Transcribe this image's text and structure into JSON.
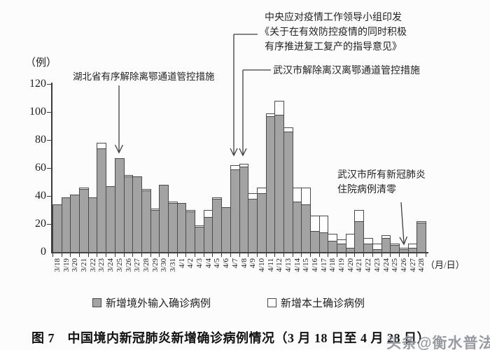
{
  "caption": {
    "text": "图 7　中国境内新冠肺炎新增确诊病例情况（3 月 18 日至 4 月 28 日）"
  },
  "watermark": {
    "text": "头条@衡水普法"
  },
  "legend": {
    "imported_label": "新增境外输入确诊病例",
    "local_label": "新增本土确诊病例"
  },
  "chart_data": {
    "type": "bar",
    "stacked": true,
    "title": "图7 中国境内新冠肺炎新增确诊病例情况（3月18日至4月28日）",
    "ylabel": "（例）",
    "xlabel": "（月/日）",
    "ylim": [
      0,
      120
    ],
    "y_ticks": [
      0,
      20,
      40,
      60,
      80,
      100,
      120
    ],
    "grid": false,
    "legend_position": "bottom",
    "categories": [
      "3/18",
      "3/19",
      "3/20",
      "3/21",
      "3/22",
      "3/23",
      "3/24",
      "3/25",
      "3/26",
      "3/27",
      "3/28",
      "3/29",
      "3/30",
      "3/31",
      "4/1",
      "4/2",
      "4/3",
      "4/4",
      "4/5",
      "4/6",
      "4/7",
      "4/8",
      "4/9",
      "4/10",
      "4/11",
      "4/12",
      "4/13",
      "4/14",
      "4/15",
      "4/16",
      "4/17",
      "4/18",
      "4/19",
      "4/20",
      "4/21",
      "4/22",
      "4/23",
      "4/24",
      "4/25",
      "4/26",
      "4/27",
      "4/28"
    ],
    "series": [
      {
        "name": "新增境外输入确诊病例",
        "color": "#a3a3a3",
        "values": [
          34,
          39,
          41,
          45,
          39,
          74,
          47,
          67,
          54,
          54,
          44,
          30,
          48,
          35,
          35,
          29,
          18,
          25,
          38,
          32,
          59,
          61,
          38,
          42,
          97,
          98,
          86,
          36,
          34,
          15,
          14,
          8,
          6,
          3,
          22,
          6,
          2,
          10,
          5,
          2,
          3,
          21
        ]
      },
      {
        "name": "新增本土确诊病例",
        "color": "#fdfdfd",
        "values": [
          0,
          0,
          0,
          1,
          0,
          4,
          0,
          0,
          1,
          0,
          1,
          1,
          0,
          1,
          0,
          1,
          1,
          5,
          1,
          0,
          3,
          2,
          4,
          4,
          2,
          10,
          3,
          10,
          12,
          11,
          12,
          5,
          3,
          10,
          8,
          4,
          4,
          2,
          1,
          1,
          3,
          1
        ]
      }
    ],
    "annotations": [
      {
        "text": "湖北省有序解除离鄂通道管控措施",
        "target": "3/25"
      },
      {
        "text": "中央应对疫情工作领导小组印发《关于在有效防控疫情的同时积极有序推进复工复产的指导意见》",
        "lines": [
          "中央应对疫情工作领导小组印发",
          "《关于在有效防控疫情的同时积极",
          "有序推进复工复产的指导意见》"
        ],
        "target": "4/7"
      },
      {
        "text": "武汉市解除离汉离鄂通道管控措施",
        "target": "4/8"
      },
      {
        "text": "武汉市所有新冠肺炎住院病例清零",
        "lines": [
          "武汉市所有新冠肺炎",
          "住院病例清零"
        ],
        "target": "4/26"
      }
    ]
  }
}
